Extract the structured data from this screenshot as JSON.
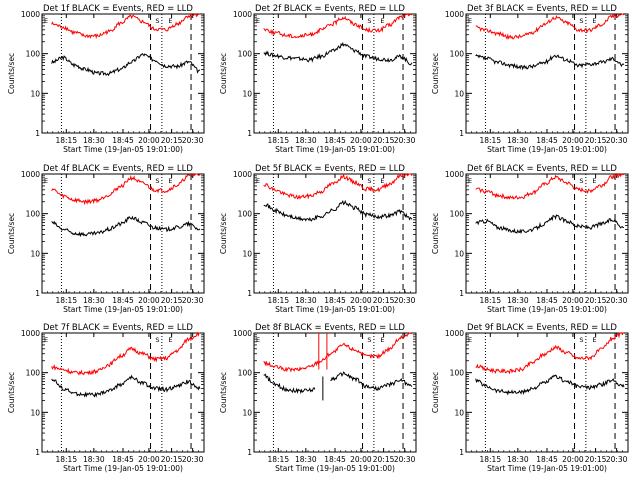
{
  "colors": {
    "events": "#000000",
    "lld": "#ff0000",
    "background": "#ffffff"
  },
  "shared_axes": {
    "ylabel": "Counts/sec",
    "xlabel": "Start Time (19-Jan-05 19:01:00)",
    "x_tick_labels": [
      "18:15",
      "18:30",
      "18:45",
      "20:00",
      "20:15",
      "20:30"
    ],
    "y_tick_labels": [
      "1000",
      "100",
      "10",
      "1"
    ]
  },
  "chart_data": [
    {
      "type": "line",
      "title": "Det 1f BLACK = Events, RED = LLD",
      "y_scale": "log",
      "ylim": [
        1,
        1000
      ],
      "x_ticks": [
        "18:15",
        "18:30",
        "18:45",
        "20:00",
        "20:15",
        "20:30"
      ],
      "series": [
        {
          "name": "BLACK = Events",
          "color": "#000000",
          "values": [
            60,
            80,
            52,
            40,
            32,
            32,
            40,
            62,
            95,
            70,
            50,
            48,
            62,
            35
          ]
        },
        {
          "name": "RED = LLD",
          "color": "#ff0000",
          "values": [
            560,
            470,
            340,
            280,
            280,
            360,
            580,
            860,
            640,
            420,
            400,
            560,
            900,
            1000
          ]
        }
      ],
      "events_gaps": [],
      "marker_text": [
        "S",
        "E"
      ],
      "vlines": {
        "dotted": [
          0.12,
          0.74
        ],
        "dashed": [
          0.67,
          0.92
        ]
      }
    },
    {
      "type": "line",
      "title": "Det 2f BLACK = Events, RED = LLD",
      "y_scale": "log",
      "ylim": [
        1,
        1000
      ],
      "x_ticks": [
        "18:15",
        "18:30",
        "18:45",
        "20:00",
        "20:15",
        "20:30"
      ],
      "series": [
        {
          "name": "BLACK = Events",
          "color": "#000000",
          "values": [
            105,
            90,
            80,
            75,
            70,
            85,
            115,
            170,
            120,
            85,
            75,
            70,
            85,
            55
          ]
        },
        {
          "name": "RED = LLD",
          "color": "#ff0000",
          "values": [
            420,
            340,
            290,
            270,
            300,
            390,
            560,
            820,
            560,
            400,
            380,
            520,
            850,
            1000
          ]
        }
      ],
      "events_gaps": [],
      "marker_text": [
        "S",
        "E"
      ],
      "vlines": {
        "dotted": [
          0.12,
          0.74
        ],
        "dashed": [
          0.67,
          0.92
        ]
      }
    },
    {
      "type": "line",
      "title": "Det 3f BLACK = Events, RED = LLD",
      "y_scale": "log",
      "ylim": [
        1,
        1000
      ],
      "x_ticks": [
        "18:15",
        "18:30",
        "18:45",
        "20:00",
        "20:15",
        "20:30"
      ],
      "series": [
        {
          "name": "BLACK = Events",
          "color": "#000000",
          "values": [
            85,
            75,
            60,
            52,
            45,
            48,
            60,
            90,
            70,
            50,
            55,
            60,
            75,
            50
          ]
        },
        {
          "name": "RED = LLD",
          "color": "#ff0000",
          "values": [
            460,
            380,
            320,
            260,
            270,
            350,
            550,
            820,
            600,
            400,
            390,
            540,
            880,
            1000
          ]
        }
      ],
      "events_gaps": [],
      "marker_text": [
        "S",
        "E"
      ],
      "vlines": {
        "dotted": [
          0.12,
          0.74
        ],
        "dashed": [
          0.67,
          0.92
        ]
      }
    },
    {
      "type": "line",
      "title": "Det 4f BLACK = Events, RED = LLD",
      "y_scale": "log",
      "ylim": [
        1,
        1000
      ],
      "x_ticks": [
        "18:15",
        "18:30",
        "18:45",
        "20:00",
        "20:15",
        "20:30"
      ],
      "series": [
        {
          "name": "BLACK = Events",
          "color": "#000000",
          "values": [
            60,
            40,
            32,
            30,
            32,
            40,
            55,
            80,
            60,
            45,
            40,
            45,
            55,
            40
          ]
        },
        {
          "name": "RED = LLD",
          "color": "#ff0000",
          "values": [
            420,
            280,
            220,
            200,
            220,
            300,
            480,
            800,
            580,
            400,
            380,
            520,
            880,
            1000
          ]
        }
      ],
      "events_gaps": [],
      "marker_text": [
        "S",
        "E"
      ],
      "vlines": {
        "dotted": [
          0.12,
          0.74
        ],
        "dashed": [
          0.67,
          0.92
        ]
      }
    },
    {
      "type": "line",
      "title": "Det 5f BLACK = Events, RED = LLD",
      "y_scale": "log",
      "ylim": [
        1,
        1000
      ],
      "x_ticks": [
        "18:15",
        "18:30",
        "18:45",
        "20:00",
        "20:15",
        "20:30"
      ],
      "series": [
        {
          "name": "BLACK = Events",
          "color": "#000000",
          "values": [
            180,
            120,
            90,
            75,
            70,
            85,
            120,
            190,
            140,
            95,
            85,
            90,
            115,
            70
          ]
        },
        {
          "name": "RED = LLD",
          "color": "#ff0000",
          "values": [
            560,
            400,
            300,
            260,
            280,
            360,
            560,
            860,
            620,
            420,
            400,
            560,
            900,
            1000
          ]
        }
      ],
      "events_gaps": [],
      "marker_text": [
        "S",
        "E"
      ],
      "vlines": {
        "dotted": [
          0.12,
          0.74
        ],
        "dashed": [
          0.67,
          0.92
        ]
      }
    },
    {
      "type": "line",
      "title": "Det 6f BLACK = Events, RED = LLD",
      "y_scale": "log",
      "ylim": [
        1,
        1000
      ],
      "x_ticks": [
        "18:15",
        "18:30",
        "18:45",
        "20:00",
        "20:15",
        "20:30"
      ],
      "series": [
        {
          "name": "BLACK = Events",
          "color": "#000000",
          "values": [
            60,
            65,
            45,
            38,
            35,
            40,
            55,
            85,
            65,
            48,
            45,
            55,
            70,
            45
          ]
        },
        {
          "name": "RED = LLD",
          "color": "#ff0000",
          "values": [
            420,
            360,
            290,
            250,
            260,
            340,
            540,
            820,
            600,
            400,
            380,
            520,
            860,
            1000
          ]
        }
      ],
      "events_gaps": [],
      "marker_text": [
        "S",
        "E"
      ],
      "vlines": {
        "dotted": [
          0.12,
          0.74
        ],
        "dashed": [
          0.67,
          0.92
        ]
      }
    },
    {
      "type": "line",
      "title": "Det 7f BLACK = Events, RED = LLD",
      "y_scale": "log",
      "ylim": [
        1,
        1000
      ],
      "x_ticks": [
        "18:15",
        "18:30",
        "18:45",
        "20:00",
        "20:15",
        "20:30"
      ],
      "series": [
        {
          "name": "BLACK = Events",
          "color": "#000000",
          "values": [
            70,
            40,
            30,
            28,
            28,
            35,
            50,
            75,
            55,
            40,
            38,
            45,
            60,
            40
          ]
        },
        {
          "name": "RED = LLD",
          "color": "#ff0000",
          "values": [
            140,
            120,
            100,
            100,
            110,
            160,
            260,
            400,
            300,
            220,
            230,
            360,
            700,
            1000
          ]
        }
      ],
      "events_gaps": [],
      "marker_text": [
        "S",
        "E"
      ],
      "vlines": {
        "dotted": [
          0.12,
          0.74
        ],
        "dashed": [
          0.67,
          0.92
        ]
      }
    },
    {
      "type": "line",
      "title": "Det 8f BLACK = Events, RED = LLD",
      "y_scale": "log",
      "ylim": [
        1,
        1000
      ],
      "x_ticks": [
        "18:15",
        "18:30",
        "18:45",
        "20:00",
        "20:15",
        "20:30"
      ],
      "series": [
        {
          "name": "BLACK = Events",
          "color": "#000000",
          "values": [
            85,
            50,
            38,
            35,
            36,
            45,
            70,
            95,
            70,
            45,
            40,
            50,
            65,
            45
          ]
        },
        {
          "name": "RED = LLD",
          "color": "#ff0000",
          "values": [
            180,
            140,
            120,
            120,
            140,
            200,
            320,
            500,
            380,
            260,
            260,
            400,
            760,
            1000
          ]
        }
      ],
      "events_gaps": [
        [
          0.38,
          0.47
        ]
      ],
      "marker_text": [
        "S",
        "E"
      ],
      "vlines": {
        "dotted": [
          0.12,
          0.74
        ],
        "dashed": [
          0.67,
          0.92
        ]
      }
    },
    {
      "type": "line",
      "title": "Det 9f BLACK = Events, RED = LLD",
      "y_scale": "log",
      "ylim": [
        1,
        1000
      ],
      "x_ticks": [
        "18:15",
        "18:30",
        "18:45",
        "20:00",
        "20:15",
        "20:30"
      ],
      "series": [
        {
          "name": "BLACK = Events",
          "color": "#000000",
          "values": [
            65,
            45,
            35,
            32,
            32,
            40,
            55,
            80,
            60,
            45,
            42,
            50,
            65,
            45
          ]
        },
        {
          "name": "RED = LLD",
          "color": "#ff0000",
          "values": [
            150,
            120,
            110,
            110,
            120,
            180,
            290,
            440,
            320,
            230,
            240,
            380,
            740,
            1000
          ]
        }
      ],
      "events_gaps": [],
      "marker_text": [
        "S",
        "E"
      ],
      "vlines": {
        "dotted": [
          0.12,
          0.74
        ],
        "dashed": [
          0.67,
          0.92
        ]
      }
    }
  ]
}
